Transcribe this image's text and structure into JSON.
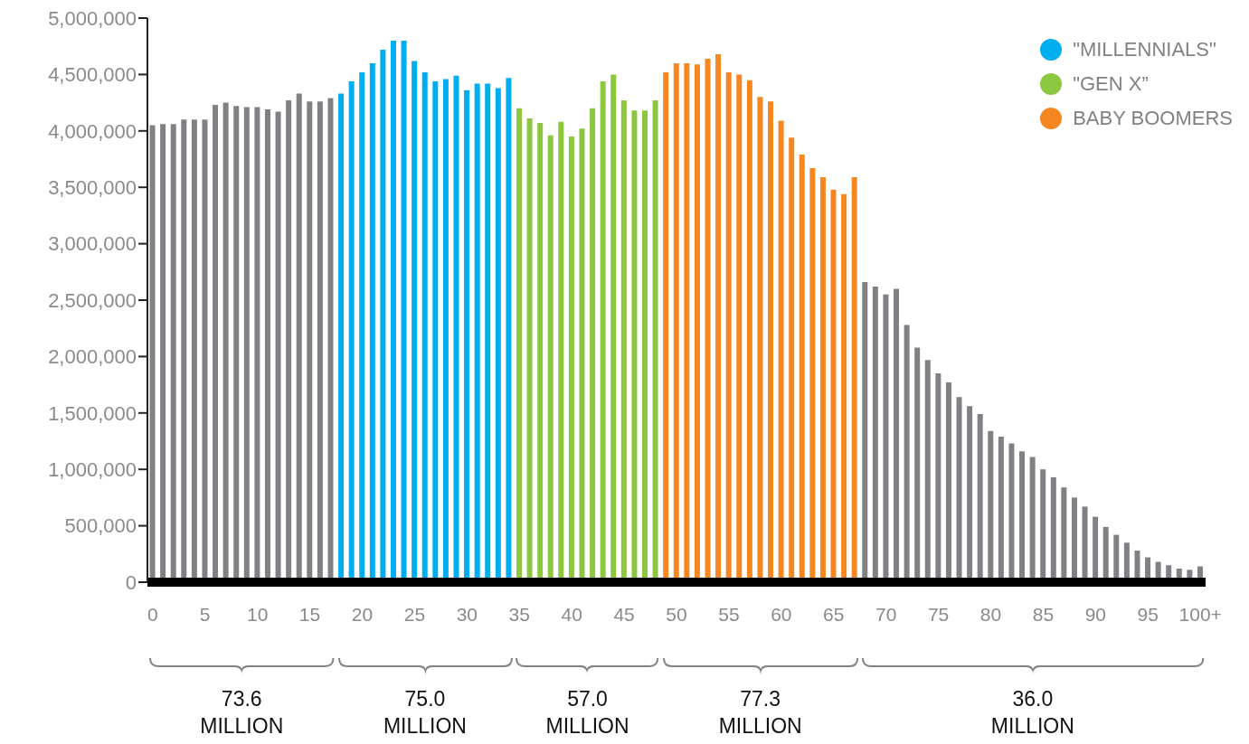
{
  "chart_data": {
    "type": "bar",
    "stacked": true,
    "legend": "top right",
    "categories": [
      "0",
      null,
      null,
      null,
      null,
      "5",
      null,
      null,
      null,
      null,
      "10",
      null,
      null,
      null,
      null,
      "15",
      null,
      null,
      null,
      null,
      "20",
      null,
      null,
      null,
      null,
      "25",
      null,
      null,
      null,
      null,
      "30",
      null,
      null,
      null,
      null,
      "35",
      null,
      null,
      null,
      null,
      "40",
      null,
      null,
      null,
      null,
      "45",
      null,
      null,
      null,
      null,
      "50",
      null,
      null,
      null,
      null,
      "55",
      null,
      null,
      null,
      null,
      "60",
      null,
      null,
      null,
      null,
      "65",
      null,
      null,
      null,
      null,
      "70",
      null,
      null,
      null,
      null,
      "75",
      null,
      null,
      null,
      null,
      "80",
      null,
      null,
      null,
      null,
      "85",
      null,
      null,
      null,
      null,
      "90",
      null,
      null,
      null,
      null,
      "95",
      null,
      null,
      null,
      null,
      "100+"
    ],
    "ylim": [
      0,
      5000000
    ],
    "yticks": [
      {
        "value": 0,
        "label": "0"
      },
      {
        "value": 500000,
        "label": "500,000"
      },
      {
        "value": 1000000,
        "label": "1,000,000"
      },
      {
        "value": 1500000,
        "label": "1,500,000"
      },
      {
        "value": 2000000,
        "label": "2,000,000"
      },
      {
        "value": 2500000,
        "label": "2,500,000"
      },
      {
        "value": 3000000,
        "label": "3,000,000"
      },
      {
        "value": 3500000,
        "label": "3,500,000"
      },
      {
        "value": 4000000,
        "label": "4,000,000"
      },
      {
        "value": 4500000,
        "label": "4,500,000"
      },
      {
        "value": 5000000,
        "label": "5,000,000"
      }
    ],
    "series": [
      {
        "color": "#808085",
        "values": [
          4050000,
          4060000,
          4060000,
          4100000,
          4100000,
          4100000,
          4230000,
          4250000,
          4220000,
          4210000,
          4210000,
          4190000,
          4170000,
          4270000,
          4330000,
          4260000,
          4260000,
          4290000,
          null,
          null,
          null,
          null,
          null,
          null,
          null,
          null,
          null,
          null,
          null,
          null,
          null,
          null,
          null,
          null,
          null,
          null,
          null,
          null,
          null,
          null,
          null,
          null,
          null,
          null,
          null,
          null,
          null,
          null,
          null,
          null,
          null,
          null,
          null,
          null,
          null,
          null,
          null,
          null,
          null,
          null,
          null,
          null,
          null,
          null,
          null,
          null,
          null,
          null,
          2660000,
          2620000,
          2550000,
          2600000,
          2280000,
          2080000,
          1970000,
          1850000,
          1770000,
          1640000,
          1560000,
          1490000,
          1340000,
          1290000,
          1230000,
          1160000,
          1110000,
          1000000,
          930000,
          840000,
          750000,
          670000,
          580000,
          490000,
          420000,
          350000,
          280000,
          220000,
          180000,
          150000,
          120000,
          110000,
          140000
        ]
      },
      {
        "name": "\"MILLENNIALS\"",
        "color": "#00aeef",
        "values": [
          null,
          null,
          null,
          null,
          null,
          null,
          null,
          null,
          null,
          null,
          null,
          null,
          null,
          null,
          null,
          null,
          null,
          null,
          4330000,
          4440000,
          4520000,
          4600000,
          4720000,
          4800000,
          4800000,
          4620000,
          4520000,
          4440000,
          4460000,
          4490000,
          4360000,
          4420000,
          4420000,
          4380000,
          4470000,
          null,
          null,
          null,
          null,
          null,
          null,
          null,
          null,
          null,
          null,
          null,
          null,
          null,
          null,
          null,
          null,
          null,
          null,
          null,
          null,
          null,
          null,
          null,
          null,
          null,
          null,
          null,
          null,
          null,
          null,
          null,
          null,
          null,
          null,
          null,
          null,
          null,
          null,
          null,
          null,
          null,
          null,
          null,
          null,
          null,
          null,
          null,
          null,
          null,
          null,
          null,
          null,
          null,
          null,
          null,
          null,
          null,
          null,
          null,
          null,
          null,
          null,
          null,
          null,
          null,
          null
        ]
      },
      {
        "name": "\"GEN X”",
        "color": "#8dc63f",
        "values": [
          null,
          null,
          null,
          null,
          null,
          null,
          null,
          null,
          null,
          null,
          null,
          null,
          null,
          null,
          null,
          null,
          null,
          null,
          null,
          null,
          null,
          null,
          null,
          null,
          null,
          null,
          null,
          null,
          null,
          null,
          null,
          null,
          null,
          null,
          null,
          4200000,
          4110000,
          4070000,
          3960000,
          4080000,
          3950000,
          4020000,
          4200000,
          4440000,
          4500000,
          4270000,
          4180000,
          4180000,
          4270000,
          null,
          null,
          null,
          null,
          null,
          null,
          null,
          null,
          null,
          null,
          null,
          null,
          null,
          null,
          null,
          null,
          null,
          null,
          null,
          null,
          null,
          null,
          null,
          null,
          null,
          null,
          null,
          null,
          null,
          null,
          null,
          null,
          null,
          null,
          null,
          null,
          null,
          null,
          null,
          null,
          null,
          null,
          null,
          null,
          null,
          null,
          null,
          null,
          null,
          null,
          null,
          null
        ]
      },
      {
        "name": "BABY BOOMERS",
        "color": "#f58720",
        "values": [
          null,
          null,
          null,
          null,
          null,
          null,
          null,
          null,
          null,
          null,
          null,
          null,
          null,
          null,
          null,
          null,
          null,
          null,
          null,
          null,
          null,
          null,
          null,
          null,
          null,
          null,
          null,
          null,
          null,
          null,
          null,
          null,
          null,
          null,
          null,
          null,
          null,
          null,
          null,
          null,
          null,
          null,
          null,
          null,
          null,
          null,
          null,
          null,
          null,
          4520000,
          4600000,
          4600000,
          4590000,
          4640000,
          4680000,
          4520000,
          4500000,
          4450000,
          4300000,
          4260000,
          4090000,
          3940000,
          3790000,
          3670000,
          3590000,
          3480000,
          3440000,
          3590000,
          null,
          null,
          null,
          null,
          null,
          null,
          null,
          null,
          null,
          null,
          null,
          null,
          null,
          null,
          null,
          null,
          null,
          null,
          null,
          null,
          null,
          null,
          null,
          null,
          null,
          null,
          null,
          null,
          null,
          null,
          null,
          null,
          null
        ]
      }
    ],
    "annotations": [
      "73.6 MILLION",
      "75.0 MILLION",
      "57.0 MILLION",
      "77.3 MILLION",
      "36.0 MILLION"
    ]
  }
}
